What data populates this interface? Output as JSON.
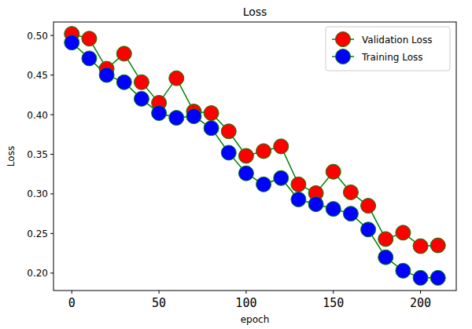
{
  "chart_data": {
    "type": "line",
    "title": "Loss",
    "x_label": "epoch",
    "y_label": "Loss",
    "x": [
      0,
      10,
      20,
      30,
      40,
      50,
      60,
      70,
      80,
      90,
      100,
      110,
      120,
      130,
      140,
      150,
      160,
      170,
      180,
      190,
      200,
      210
    ],
    "series": [
      {
        "name": "Validation Loss",
        "color": "#ff0000",
        "marker": "circle",
        "values": [
          0.502,
          0.496,
          0.458,
          0.477,
          0.441,
          0.415,
          0.446,
          0.404,
          0.402,
          0.379,
          0.348,
          0.354,
          0.36,
          0.312,
          0.301,
          0.328,
          0.302,
          0.285,
          0.243,
          0.251,
          0.234,
          0.235
        ]
      },
      {
        "name": "Training Loss",
        "color": "#0000ff",
        "marker": "circle",
        "values": [
          0.491,
          0.471,
          0.45,
          0.441,
          0.42,
          0.402,
          0.396,
          0.398,
          0.383,
          0.352,
          0.326,
          0.312,
          0.32,
          0.293,
          0.287,
          0.281,
          0.275,
          0.255,
          0.22,
          0.203,
          0.194,
          0.194
        ]
      }
    ],
    "xlim": [
      -10.5,
      220.5
    ],
    "ylim": [
      0.178,
      0.517
    ],
    "xticks": [
      0,
      50,
      100,
      150,
      200
    ],
    "yticks": [
      {
        "value": 0.2,
        "label": "0.20"
      },
      0.25,
      {
        "value": 0.3,
        "label": "0.30"
      },
      0.35,
      {
        "value": 0.4,
        "label": "0.40"
      },
      0.45,
      {
        "value": 0.5,
        "label": "0.50"
      }
    ],
    "grid": false,
    "legend": "upper right"
  }
}
